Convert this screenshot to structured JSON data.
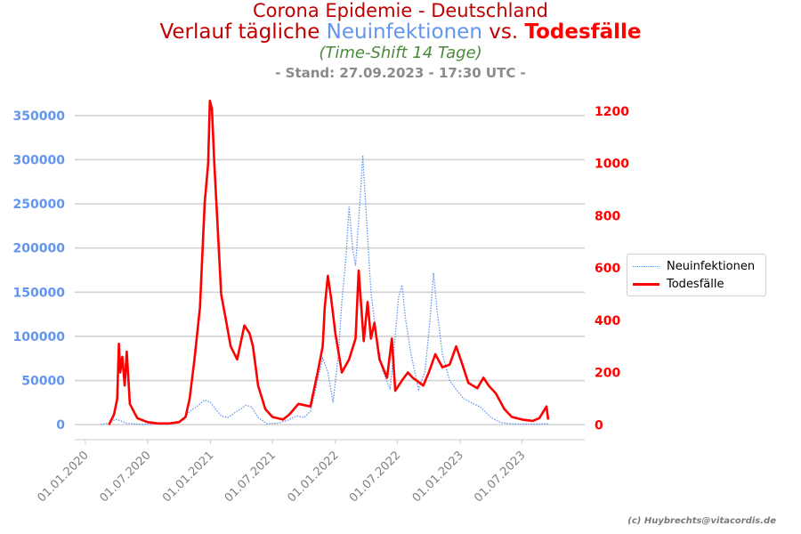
{
  "titles": {
    "line1": "Corona Epidemie - Deutschland",
    "line2_a": "Verlauf tägliche ",
    "line2_b": "Neuinfektionen",
    "line2_c": " vs. ",
    "line2_d": "Todesfälle",
    "line3": "(Time-Shift 14 Tage)",
    "line4": "- Stand: 27.09.2023 - 17:30 UTC -"
  },
  "credit": "(c) Huybrechts@vitacordis.de",
  "colors": {
    "infections": "#6495ed",
    "deaths": "#ff0000",
    "left_axis": "#6495ed",
    "right_axis": "#ff0000",
    "grid": "#d3d3d3"
  },
  "chart_data": {
    "type": "line",
    "grid": true,
    "legend_placement": "right",
    "x_axis": {
      "type": "date",
      "tick_labels": [
        "01.01.2020",
        "01.07.2020",
        "01.01.2021",
        "01.07.2021",
        "01.01.2022",
        "01.07.2022",
        "01.01.2023",
        "01.07.2023"
      ],
      "range": [
        "2019-12-01",
        "2023-12-31"
      ]
    },
    "y_left": {
      "ticks": [
        0,
        50000,
        100000,
        150000,
        200000,
        250000,
        300000,
        350000
      ],
      "range": [
        -17000,
        368000
      ]
    },
    "y_right": {
      "ticks": [
        0,
        200,
        400,
        600,
        800,
        1000,
        1200
      ],
      "range": [
        -57,
        1244
      ]
    },
    "series": [
      {
        "name": "Neuinfektionen",
        "axis": "left",
        "style": "dotted",
        "points": [
          [
            "2020-02-15",
            0
          ],
          [
            "2020-03-10",
            2000
          ],
          [
            "2020-03-25",
            5000
          ],
          [
            "2020-04-01",
            6000
          ],
          [
            "2020-04-15",
            4000
          ],
          [
            "2020-05-01",
            1500
          ],
          [
            "2020-06-01",
            500
          ],
          [
            "2020-07-01",
            400
          ],
          [
            "2020-08-15",
            1200
          ],
          [
            "2020-09-15",
            2000
          ],
          [
            "2020-10-15",
            6000
          ],
          [
            "2020-11-01",
            15000
          ],
          [
            "2020-11-20",
            20000
          ],
          [
            "2020-12-15",
            28000
          ],
          [
            "2021-01-01",
            25000
          ],
          [
            "2021-01-15",
            18000
          ],
          [
            "2021-02-01",
            10000
          ],
          [
            "2021-02-20",
            8000
          ],
          [
            "2021-03-15",
            14000
          ],
          [
            "2021-04-15",
            22000
          ],
          [
            "2021-05-01",
            20000
          ],
          [
            "2021-05-20",
            8000
          ],
          [
            "2021-06-15",
            1000
          ],
          [
            "2021-07-15",
            1500
          ],
          [
            "2021-08-15",
            5000
          ],
          [
            "2021-09-10",
            10000
          ],
          [
            "2021-10-01",
            8000
          ],
          [
            "2021-10-20",
            15000
          ],
          [
            "2021-11-10",
            50000
          ],
          [
            "2021-11-25",
            75000
          ],
          [
            "2021-12-10",
            60000
          ],
          [
            "2021-12-25",
            25000
          ],
          [
            "2022-01-10",
            80000
          ],
          [
            "2022-01-20",
            140000
          ],
          [
            "2022-02-01",
            190000
          ],
          [
            "2022-02-10",
            247000
          ],
          [
            "2022-02-20",
            200000
          ],
          [
            "2022-03-01",
            180000
          ],
          [
            "2022-03-15",
            260000
          ],
          [
            "2022-03-22",
            305000
          ],
          [
            "2022-04-01",
            240000
          ],
          [
            "2022-04-15",
            150000
          ],
          [
            "2022-05-01",
            100000
          ],
          [
            "2022-05-20",
            60000
          ],
          [
            "2022-06-10",
            40000
          ],
          [
            "2022-06-25",
            100000
          ],
          [
            "2022-07-05",
            145000
          ],
          [
            "2022-07-15",
            158000
          ],
          [
            "2022-07-25",
            120000
          ],
          [
            "2022-08-10",
            80000
          ],
          [
            "2022-09-01",
            40000
          ],
          [
            "2022-09-20",
            60000
          ],
          [
            "2022-10-05",
            120000
          ],
          [
            "2022-10-15",
            172000
          ],
          [
            "2022-10-25",
            130000
          ],
          [
            "2022-11-10",
            80000
          ],
          [
            "2022-12-01",
            50000
          ],
          [
            "2022-12-20",
            40000
          ],
          [
            "2023-01-10",
            30000
          ],
          [
            "2023-02-01",
            25000
          ],
          [
            "2023-03-01",
            20000
          ],
          [
            "2023-04-01",
            8000
          ],
          [
            "2023-05-01",
            2000
          ],
          [
            "2023-06-01",
            1000
          ],
          [
            "2023-07-01",
            500
          ],
          [
            "2023-09-15",
            800
          ]
        ]
      },
      {
        "name": "Todesfälle",
        "axis": "right",
        "style": "solid",
        "points": [
          [
            "2020-03-10",
            0
          ],
          [
            "2020-03-25",
            40
          ],
          [
            "2020-04-03",
            100
          ],
          [
            "2020-04-08",
            310
          ],
          [
            "2020-04-12",
            200
          ],
          [
            "2020-04-18",
            260
          ],
          [
            "2020-04-25",
            150
          ],
          [
            "2020-05-01",
            280
          ],
          [
            "2020-05-10",
            80
          ],
          [
            "2020-06-01",
            25
          ],
          [
            "2020-07-01",
            10
          ],
          [
            "2020-08-01",
            5
          ],
          [
            "2020-09-01",
            5
          ],
          [
            "2020-10-01",
            10
          ],
          [
            "2020-10-20",
            30
          ],
          [
            "2020-11-01",
            100
          ],
          [
            "2020-11-15",
            250
          ],
          [
            "2020-12-01",
            450
          ],
          [
            "2020-12-15",
            850
          ],
          [
            "2020-12-25",
            1000
          ],
          [
            "2020-12-30",
            1240
          ],
          [
            "2021-01-05",
            1210
          ],
          [
            "2021-01-12",
            1000
          ],
          [
            "2021-01-20",
            800
          ],
          [
            "2021-02-01",
            500
          ],
          [
            "2021-02-15",
            400
          ],
          [
            "2021-03-01",
            300
          ],
          [
            "2021-03-20",
            250
          ],
          [
            "2021-04-10",
            380
          ],
          [
            "2021-04-25",
            350
          ],
          [
            "2021-05-05",
            300
          ],
          [
            "2021-05-20",
            150
          ],
          [
            "2021-06-10",
            60
          ],
          [
            "2021-07-01",
            30
          ],
          [
            "2021-08-01",
            20
          ],
          [
            "2021-08-20",
            40
          ],
          [
            "2021-09-15",
            80
          ],
          [
            "2021-10-20",
            70
          ],
          [
            "2021-11-10",
            200
          ],
          [
            "2021-11-25",
            300
          ],
          [
            "2021-12-01",
            450
          ],
          [
            "2021-12-10",
            570
          ],
          [
            "2021-12-20",
            480
          ],
          [
            "2022-01-01",
            350
          ],
          [
            "2022-01-20",
            200
          ],
          [
            "2022-02-10",
            250
          ],
          [
            "2022-03-01",
            330
          ],
          [
            "2022-03-10",
            590
          ],
          [
            "2022-03-25",
            320
          ],
          [
            "2022-04-05",
            470
          ],
          [
            "2022-04-15",
            330
          ],
          [
            "2022-04-25",
            390
          ],
          [
            "2022-05-10",
            250
          ],
          [
            "2022-06-01",
            180
          ],
          [
            "2022-06-15",
            330
          ],
          [
            "2022-06-25",
            130
          ],
          [
            "2022-07-15",
            170
          ],
          [
            "2022-08-01",
            200
          ],
          [
            "2022-08-15",
            180
          ],
          [
            "2022-09-15",
            150
          ],
          [
            "2022-10-01",
            200
          ],
          [
            "2022-10-20",
            270
          ],
          [
            "2022-11-10",
            220
          ],
          [
            "2022-12-01",
            230
          ],
          [
            "2022-12-20",
            300
          ],
          [
            "2023-01-05",
            240
          ],
          [
            "2023-01-25",
            160
          ],
          [
            "2023-02-20",
            140
          ],
          [
            "2023-03-10",
            180
          ],
          [
            "2023-03-25",
            150
          ],
          [
            "2023-04-15",
            120
          ],
          [
            "2023-05-10",
            60
          ],
          [
            "2023-06-01",
            30
          ],
          [
            "2023-07-01",
            20
          ],
          [
            "2023-08-01",
            15
          ],
          [
            "2023-08-20",
            25
          ],
          [
            "2023-09-01",
            50
          ],
          [
            "2023-09-10",
            70
          ],
          [
            "2023-09-15",
            20
          ]
        ]
      }
    ]
  }
}
